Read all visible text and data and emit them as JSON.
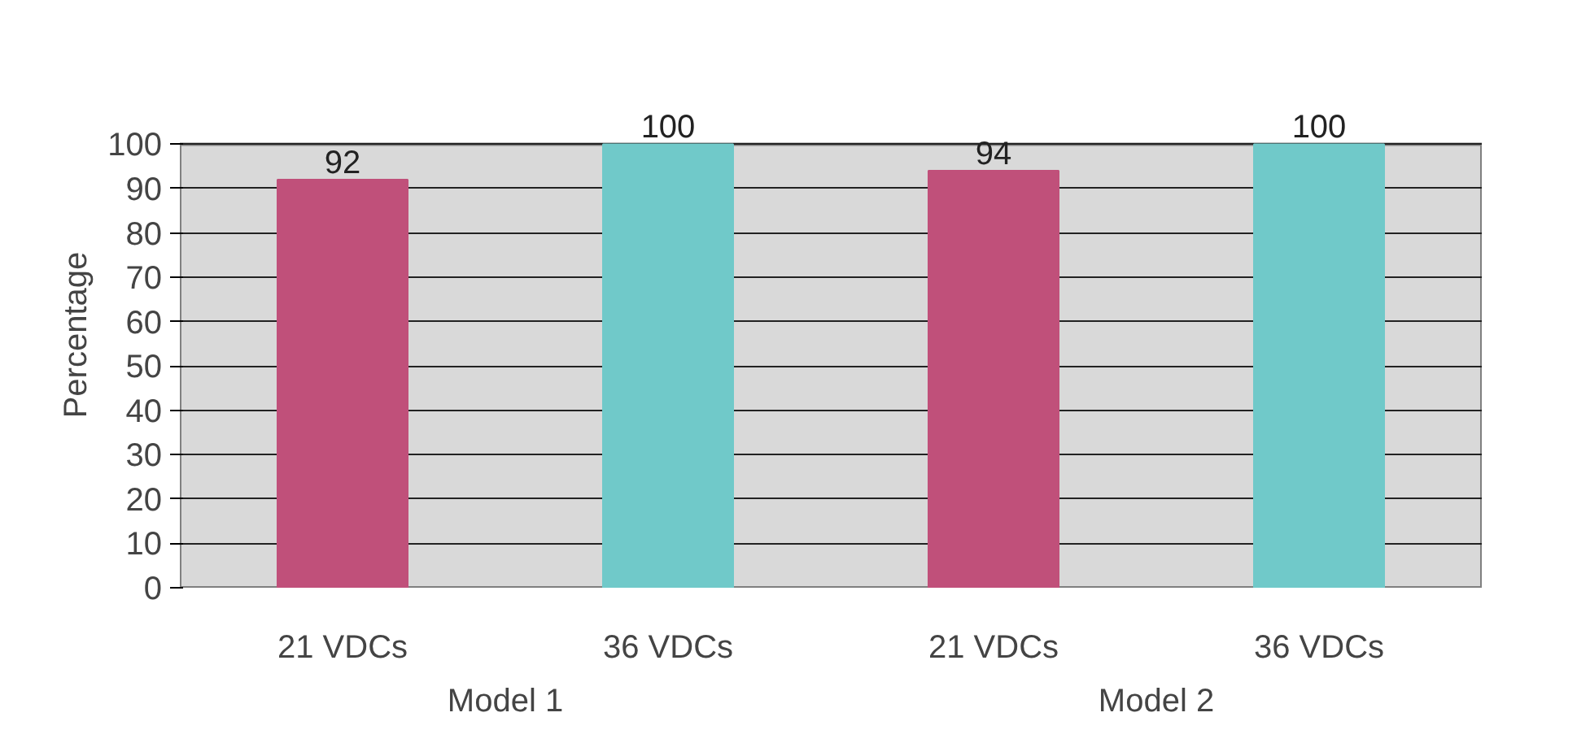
{
  "chart_data": {
    "type": "bar",
    "ylabel": "Percentage",
    "categories": [
      "21 VDCs",
      "36 VDCs",
      "21 VDCs",
      "36 VDCs"
    ],
    "values": [
      92,
      100,
      94,
      100
    ],
    "colors": [
      "#c0507a",
      "#70c9c9",
      "#c0507a",
      "#70c9c9"
    ],
    "annotations": [
      "Model 1",
      "Model 2"
    ],
    "ylim": [
      0,
      100
    ],
    "yticks": [
      0,
      10,
      20,
      30,
      40,
      50,
      60,
      70,
      80,
      90,
      100
    ],
    "grid": "y",
    "data_labels": true
  }
}
